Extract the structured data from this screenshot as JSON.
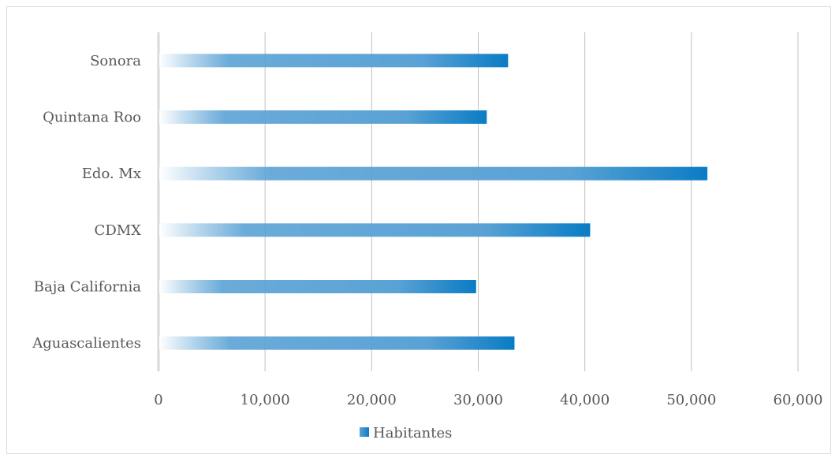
{
  "chart_data": {
    "type": "bar",
    "orientation": "horizontal",
    "title": "",
    "xlabel": "",
    "ylabel": "",
    "categories": [
      "Aguascalientes",
      "Baja California",
      "CDMX",
      "Edo. Mx",
      "Quintana Roo",
      "Sonora"
    ],
    "series": [
      {
        "name": "Habitantes",
        "values": [
          33400,
          29800,
          40500,
          51500,
          30800,
          32800
        ]
      }
    ],
    "xlim": [
      0,
      60000
    ],
    "xticks": [
      0,
      10000,
      20000,
      30000,
      40000,
      50000,
      60000
    ],
    "xtick_labels": [
      "0",
      "10,000",
      "20,000",
      "30,000",
      "40,000",
      "50,000",
      "60,000"
    ],
    "grid": "vertical",
    "legend": "bottom",
    "colors": {
      "bar_start": "#ffffff",
      "bar_mid": "#5aa2d5",
      "bar_end": "#0a7cc4",
      "grid": "#bfbfbf",
      "axis": "#d9d9d9",
      "text": "#595959"
    }
  }
}
